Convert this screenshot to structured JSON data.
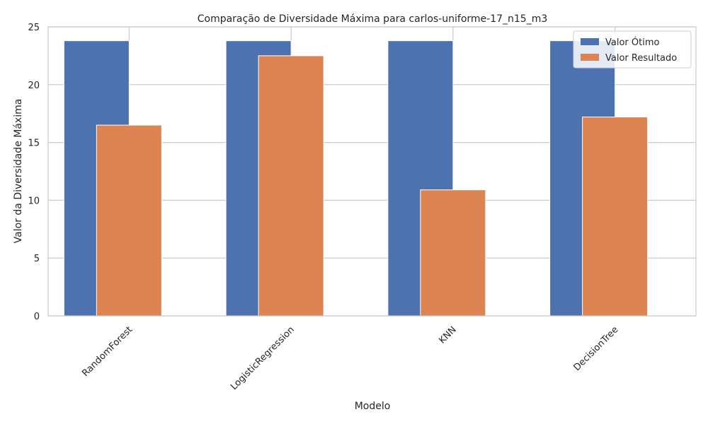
{
  "chart_data": {
    "type": "bar",
    "title": "Comparação de Diversidade Máxima para carlos-uniforme-17_n15_m3",
    "xlabel": "Modelo",
    "ylabel": "Valor da Diversidade Máxima",
    "categories": [
      "RandomForest",
      "LogisticRegression",
      "KNN",
      "DecisionTree"
    ],
    "series": [
      {
        "name": "Valor Ótimo",
        "values": [
          23.8,
          23.8,
          23.8,
          23.8
        ],
        "color": "#4c72b0"
      },
      {
        "name": "Valor Resultado",
        "values": [
          16.5,
          22.5,
          10.9,
          17.2
        ],
        "color": "#dd8452"
      }
    ],
    "ylim": [
      0,
      25
    ],
    "yticks": [
      0,
      5,
      10,
      15,
      20,
      25
    ],
    "grid": true,
    "legend": "top-right"
  }
}
